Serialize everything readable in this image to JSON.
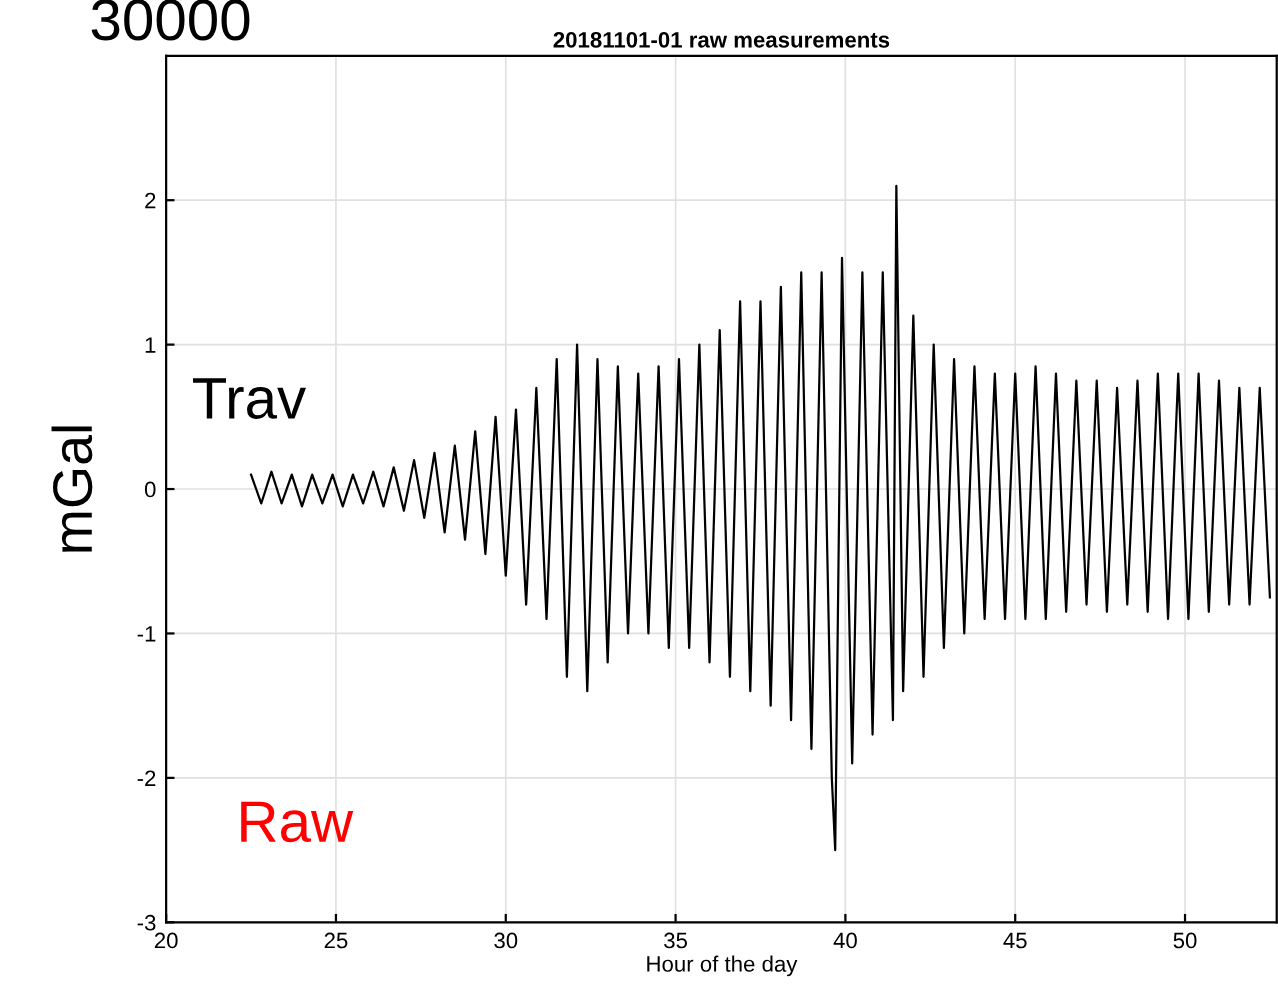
{
  "chart_data": {
    "type": "line",
    "title": "20181101-01 raw measurements",
    "xlabel": "Hour of the day",
    "ylabel": "mGal",
    "annotations": [
      "30000",
      "Trav",
      "Raw"
    ],
    "xlim": [
      20,
      52.7
    ],
    "xticks": [
      20,
      25,
      30,
      35,
      40,
      45,
      50
    ],
    "ylim": [
      -3,
      3
    ],
    "yticks": [
      -3,
      -2,
      -1,
      0,
      1,
      2
    ],
    "grid": true,
    "series": [
      {
        "color": "#000000",
        "x": [
          22.5,
          22.8,
          23.1,
          23.4,
          23.7,
          24.0,
          24.3,
          24.6,
          24.9,
          25.2,
          25.5,
          25.8,
          26.1,
          26.4,
          26.7,
          27.0,
          27.3,
          27.6,
          27.9,
          28.2,
          28.5,
          28.8,
          29.1,
          29.4,
          29.7,
          30.0,
          30.3,
          30.6,
          30.9,
          31.2,
          31.5,
          31.8,
          32.1,
          32.4,
          32.7,
          33.0,
          33.3,
          33.6,
          33.9,
          34.2,
          34.5,
          34.8,
          35.1,
          35.4,
          35.7,
          36.0,
          36.3,
          36.6,
          36.9,
          37.2,
          37.5,
          37.8,
          38.1,
          38.4,
          38.7,
          39.0,
          39.3,
          39.6,
          39.7,
          39.9,
          40.2,
          40.5,
          40.8,
          41.1,
          41.4,
          41.5,
          41.7,
          42.0,
          42.3,
          42.6,
          42.9,
          43.2,
          43.5,
          43.8,
          44.1,
          44.4,
          44.7,
          45.0,
          45.3,
          45.6,
          45.9,
          46.2,
          46.5,
          46.8,
          47.1,
          47.4,
          47.7,
          48.0,
          48.3,
          48.6,
          48.9,
          49.2,
          49.5,
          49.8,
          50.1,
          50.4,
          50.7,
          51.0,
          51.3,
          51.6,
          51.9,
          52.2,
          52.5
        ],
        "values": [
          0.1,
          -0.1,
          0.12,
          -0.1,
          0.1,
          -0.12,
          0.1,
          -0.1,
          0.1,
          -0.12,
          0.1,
          -0.1,
          0.12,
          -0.12,
          0.15,
          -0.15,
          0.2,
          -0.2,
          0.25,
          -0.3,
          0.3,
          -0.35,
          0.4,
          -0.45,
          0.5,
          -0.6,
          0.55,
          -0.8,
          0.7,
          -0.9,
          0.9,
          -1.3,
          1.0,
          -1.4,
          0.9,
          -1.2,
          0.85,
          -1.0,
          0.8,
          -1.0,
          0.85,
          -1.1,
          0.9,
          -1.1,
          1.0,
          -1.2,
          1.1,
          -1.3,
          1.3,
          -1.4,
          1.3,
          -1.5,
          1.4,
          -1.6,
          1.5,
          -1.8,
          1.5,
          -2.0,
          -2.5,
          1.6,
          -1.9,
          1.5,
          -1.7,
          1.5,
          -1.6,
          2.1,
          -1.4,
          1.2,
          -1.3,
          1.0,
          -1.1,
          0.9,
          -1.0,
          0.85,
          -0.9,
          0.8,
          -0.9,
          0.8,
          -0.9,
          0.85,
          -0.9,
          0.8,
          -0.85,
          0.75,
          -0.8,
          0.75,
          -0.85,
          0.7,
          -0.8,
          0.75,
          -0.85,
          0.8,
          -0.9,
          0.8,
          -0.9,
          0.8,
          -0.85,
          0.75,
          -0.8,
          0.7,
          -0.8,
          0.7,
          -0.75
        ]
      }
    ]
  }
}
